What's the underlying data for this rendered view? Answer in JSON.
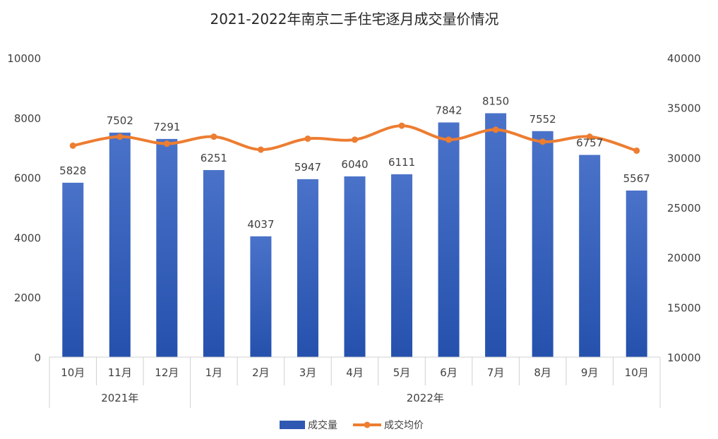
{
  "chart_data": {
    "type": "bar+line",
    "title": "2021-2022年南京二手住宅逐月成交量价情况",
    "categories": [
      "10月",
      "11月",
      "12月",
      "1月",
      "2月",
      "3月",
      "4月",
      "5月",
      "6月",
      "7月",
      "8月",
      "9月",
      "10月"
    ],
    "category_groups": [
      {
        "label": "2021年",
        "count": 3
      },
      {
        "label": "2022年",
        "count": 10
      }
    ],
    "series": [
      {
        "name": "成交量",
        "type": "bar",
        "axis": "left",
        "color": "#2f58b3",
        "values": [
          5828,
          7502,
          7291,
          6251,
          4037,
          5947,
          6040,
          6111,
          7842,
          8150,
          7552,
          6757,
          5567
        ]
      },
      {
        "name": "成交均价",
        "type": "line",
        "axis": "right",
        "color": "#ed7d31",
        "values": [
          31200,
          32100,
          31400,
          32100,
          30800,
          31900,
          31800,
          33200,
          31800,
          32800,
          31600,
          32100,
          30700
        ]
      }
    ],
    "y_left": {
      "min": 0,
      "max": 10000,
      "ticks": [
        0,
        2000,
        4000,
        6000,
        8000,
        10000
      ]
    },
    "y_right": {
      "min": 10000,
      "max": 40000,
      "ticks": [
        10000,
        15000,
        20000,
        25000,
        30000,
        35000,
        40000
      ]
    },
    "grid": false,
    "legend": "bottom"
  }
}
